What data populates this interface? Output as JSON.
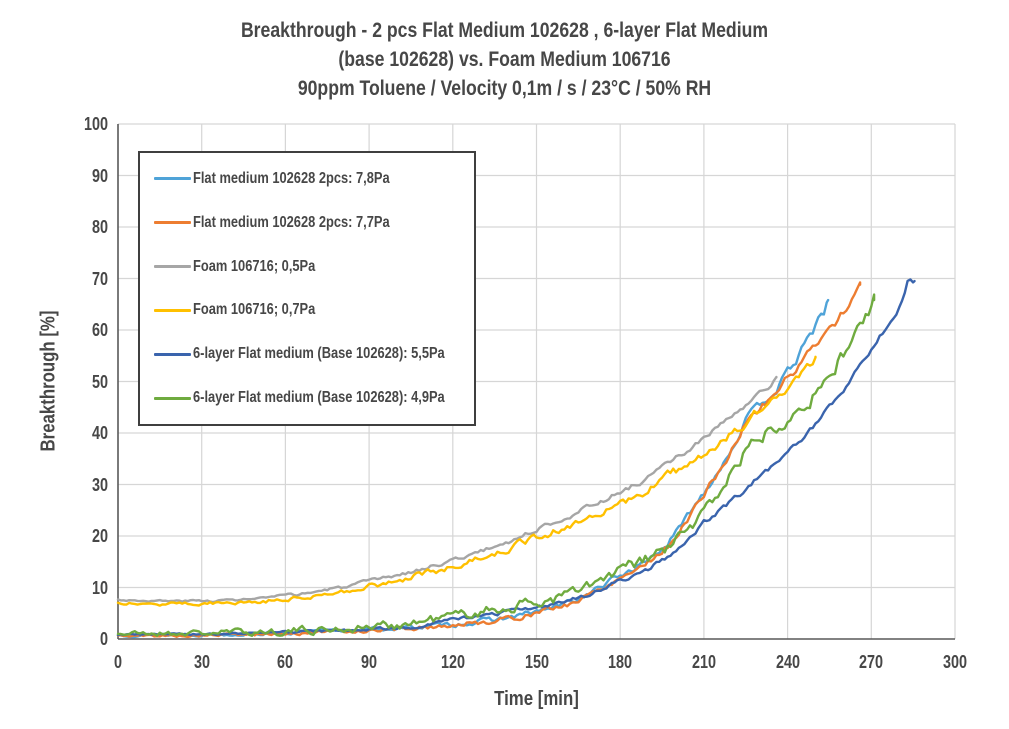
{
  "title": {
    "line1": "Breakthrough  - 2 pcs Flat Medium 102628 , 6-layer Flat Medium",
    "line2": "(base 102628) vs. Foam Medium 106716",
    "line3": "90ppm Toluene / Velocity 0,1m / s / 23°C / 50% RH"
  },
  "colors": {
    "text": "#474747",
    "grid": "#d6d6d6",
    "axis": "#595959",
    "legend_border": "#3f3f3f"
  },
  "chart_data": {
    "type": "line",
    "title": "Breakthrough - 2 pcs Flat Medium 102628, 6-layer Flat Medium (base 102628) vs. Foam Medium 106716 — 90ppm Toluene / Velocity 0,1m/s / 23°C / 50% RH",
    "xlabel": "Time [min]",
    "ylabel": "Breakthrough [%]",
    "xlim": [
      0,
      300
    ],
    "ylim": [
      0,
      100
    ],
    "x_ticks": [
      0,
      30,
      60,
      90,
      120,
      150,
      180,
      210,
      240,
      270,
      300
    ],
    "y_ticks": [
      0,
      10,
      20,
      30,
      40,
      50,
      60,
      70,
      80,
      90,
      100
    ],
    "grid": true,
    "legend_position": "upper-left-inside",
    "series": [
      {
        "name": "Flat medium 102628 2pcs: 7,8Pa",
        "color": "#4FA3D8",
        "noise": 0.55,
        "seed": 13,
        "points": [
          [
            0,
            0.75
          ],
          [
            20,
            0.8
          ],
          [
            40,
            0.95
          ],
          [
            60,
            1.2
          ],
          [
            80,
            1.6
          ],
          [
            100,
            2.1
          ],
          [
            115,
            2.6
          ],
          [
            130,
            3.4
          ],
          [
            142,
            4.3
          ],
          [
            150,
            5.3
          ],
          [
            158,
            6.4
          ],
          [
            165,
            7.8
          ],
          [
            171,
            9.5
          ],
          [
            180,
            12.3
          ],
          [
            189,
            15
          ],
          [
            197,
            18.5
          ],
          [
            202,
            22
          ],
          [
            206,
            25.5
          ],
          [
            210,
            28.5
          ],
          [
            216,
            33.5
          ],
          [
            221,
            38
          ],
          [
            225,
            42.5
          ],
          [
            231,
            46
          ],
          [
            236,
            48.5
          ],
          [
            239,
            51
          ],
          [
            243,
            54
          ],
          [
            246,
            57
          ],
          [
            249.5,
            60
          ],
          [
            251.5,
            63.5
          ],
          [
            252.5,
            62.5
          ],
          [
            254.5,
            65.8
          ]
        ]
      },
      {
        "name": "Flat medium 102628 2pcs: 7,7Pa",
        "color": "#ED7D31",
        "noise": 0.55,
        "seed": 5,
        "points": [
          [
            0,
            0.6
          ],
          [
            20,
            0.65
          ],
          [
            40,
            0.8
          ],
          [
            60,
            1.05
          ],
          [
            80,
            1.45
          ],
          [
            100,
            1.95
          ],
          [
            115,
            2.45
          ],
          [
            130,
            3.2
          ],
          [
            142,
            4.1
          ],
          [
            150,
            5.1
          ],
          [
            158,
            6.2
          ],
          [
            165,
            7.5
          ],
          [
            171,
            9.2
          ],
          [
            180,
            12
          ],
          [
            189,
            14.6
          ],
          [
            197,
            18
          ],
          [
            202,
            21.5
          ],
          [
            206,
            25
          ],
          [
            210,
            28
          ],
          [
            216,
            33
          ],
          [
            221,
            37.5
          ],
          [
            225,
            42
          ],
          [
            231,
            45.3
          ],
          [
            236,
            47.8
          ],
          [
            240,
            51
          ],
          [
            243,
            52.5
          ],
          [
            247,
            55
          ],
          [
            251,
            58
          ],
          [
            254,
            60
          ],
          [
            257,
            61.5
          ],
          [
            260,
            63.5
          ],
          [
            262.5,
            65.5
          ],
          [
            264.5,
            66.5
          ],
          [
            266,
            68.8
          ]
        ]
      },
      {
        "name": "Foam 106716; 0,5Pa",
        "color": "#A6A6A6",
        "noise": 0.4,
        "seed": 3,
        "points": [
          [
            0,
            7.6
          ],
          [
            18,
            7.35
          ],
          [
            35,
            7.45
          ],
          [
            50,
            7.8
          ],
          [
            65,
            8.7
          ],
          [
            80,
            10
          ],
          [
            93,
            11.5
          ],
          [
            105,
            13
          ],
          [
            118,
            15
          ],
          [
            130,
            17
          ],
          [
            142,
            19.3
          ],
          [
            152,
            21.8
          ],
          [
            162,
            24
          ],
          [
            172,
            26.5
          ],
          [
            180,
            28.5
          ],
          [
            189,
            31
          ],
          [
            197,
            34
          ],
          [
            204,
            36.5
          ],
          [
            210,
            39
          ],
          [
            216,
            41.5
          ],
          [
            222,
            44
          ],
          [
            228,
            46.5
          ],
          [
            233,
            49
          ],
          [
            236,
            50.8
          ]
        ]
      },
      {
        "name": "Foam 106716; 0,7Pa",
        "color": "#FFC000",
        "noise": 0.7,
        "seed": 27,
        "points": [
          [
            0,
            7.1
          ],
          [
            18,
            6.85
          ],
          [
            35,
            6.95
          ],
          [
            50,
            7.3
          ],
          [
            65,
            8.1
          ],
          [
            80,
            9.2
          ],
          [
            93,
            10.6
          ],
          [
            105,
            12
          ],
          [
            118,
            13.8
          ],
          [
            130,
            15.8
          ],
          [
            142,
            18
          ],
          [
            152,
            20
          ],
          [
            162,
            22
          ],
          [
            172,
            24.3
          ],
          [
            180,
            26
          ],
          [
            189,
            28.5
          ],
          [
            197,
            31.5
          ],
          [
            204,
            34
          ],
          [
            210,
            36.3
          ],
          [
            216,
            38.5
          ],
          [
            222,
            41
          ],
          [
            228,
            43.5
          ],
          [
            234,
            46
          ],
          [
            240,
            48.5
          ],
          [
            244,
            50.5
          ],
          [
            247,
            52.3
          ],
          [
            250,
            54.8
          ]
        ]
      },
      {
        "name": "6-layer Flat medium (Base 102628): 5,5Pa",
        "color": "#3A64AD",
        "noise": 0.4,
        "seed": 9,
        "points": [
          [
            0,
            0.85
          ],
          [
            30,
            0.95
          ],
          [
            60,
            1.25
          ],
          [
            85,
            1.7
          ],
          [
            105,
            2.3
          ],
          [
            120,
            3.7
          ],
          [
            132,
            4.6
          ],
          [
            150,
            6.1
          ],
          [
            162,
            7.6
          ],
          [
            172,
            9.3
          ],
          [
            180,
            11.3
          ],
          [
            190,
            13.5
          ],
          [
            197,
            16
          ],
          [
            204,
            18.8
          ],
          [
            210,
            22.5
          ],
          [
            218,
            26
          ],
          [
            225,
            29
          ],
          [
            232,
            32.5
          ],
          [
            240,
            36
          ],
          [
            246,
            39.5
          ],
          [
            252,
            43
          ],
          [
            257,
            46
          ],
          [
            262,
            50
          ],
          [
            266,
            53
          ],
          [
            271,
            57
          ],
          [
            276,
            61
          ],
          [
            280.5,
            65
          ],
          [
            282.5,
            68
          ],
          [
            283.5,
            71
          ],
          [
            284.5,
            68.3
          ],
          [
            285.5,
            69.5
          ]
        ]
      },
      {
        "name": "6-layer Flat medium (Base 102628): 4,9Pa",
        "color": "#6FAB3F",
        "noise": 1.15,
        "seed": 21,
        "points": [
          [
            0,
            1.05
          ],
          [
            30,
            1.15
          ],
          [
            60,
            1.55
          ],
          [
            85,
            2.1
          ],
          [
            105,
            3
          ],
          [
            120,
            4.5
          ],
          [
            132,
            5.5
          ],
          [
            150,
            7
          ],
          [
            162,
            8.8
          ],
          [
            172,
            10.8
          ],
          [
            180,
            13.2
          ],
          [
            190,
            15.5
          ],
          [
            198,
            18
          ],
          [
            204,
            21
          ],
          [
            210,
            24.5
          ],
          [
            217,
            30
          ],
          [
            225,
            36.5
          ],
          [
            232,
            40
          ],
          [
            240,
            43.5
          ],
          [
            245,
            46
          ],
          [
            250,
            47.5
          ],
          [
            254,
            50
          ],
          [
            259,
            54.5
          ],
          [
            263,
            58
          ],
          [
            265,
            60
          ],
          [
            268,
            62.5
          ],
          [
            271,
            65.8
          ]
        ]
      }
    ]
  }
}
